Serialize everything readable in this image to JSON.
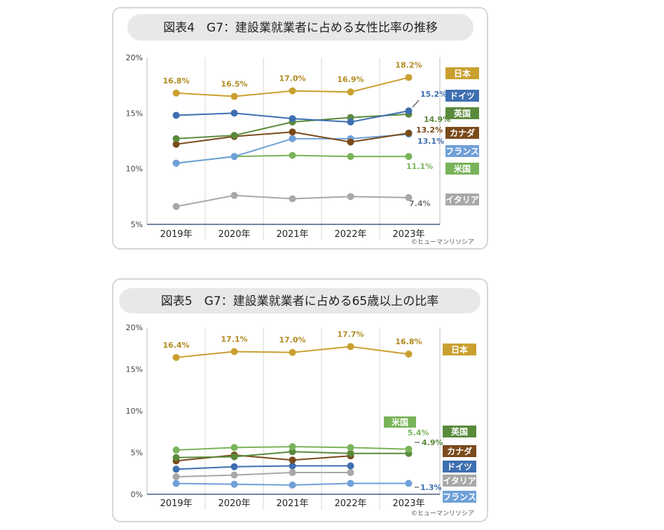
{
  "chart_data": [
    {
      "type": "line",
      "title": "図表4　G7：建設業就業者に占める女性比率の推移",
      "categories": [
        "2019年",
        "2020年",
        "2021年",
        "2022年",
        "2023年"
      ],
      "ylim": [
        5,
        20
      ],
      "yticks": [
        5,
        10,
        15,
        20
      ],
      "ytick_labels": [
        "5%",
        "10%",
        "15%",
        "20%"
      ],
      "credit": "©ヒューマンリソシア",
      "series": [
        {
          "name": "日本",
          "color": "#C9A030",
          "values": [
            16.8,
            16.5,
            17.0,
            16.9,
            18.2
          ],
          "value_labels": [
            "16.8%",
            "16.5%",
            "17.0%",
            "16.9%",
            "18.2%"
          ]
        },
        {
          "name": "ドイツ",
          "color": "#3E6FB0",
          "values": [
            14.8,
            15.0,
            14.5,
            14.2,
            15.2
          ],
          "value_labels": [
            "",
            "",
            "",
            "",
            "15.2%"
          ]
        },
        {
          "name": "英国",
          "color": "#5A8A3C",
          "values": [
            12.7,
            13.0,
            14.2,
            14.6,
            14.9
          ],
          "value_labels": [
            "",
            "",
            "",
            "",
            "14.9%"
          ]
        },
        {
          "name": "カナダ",
          "color": "#7A4A1A",
          "values": [
            12.2,
            12.9,
            13.3,
            12.4,
            13.2
          ],
          "value_labels": [
            "",
            "",
            "",
            "",
            "13.2%"
          ]
        },
        {
          "name": "フランス",
          "color": "#6FA0D8",
          "values": [
            10.5,
            11.1,
            12.7,
            12.7,
            13.1
          ],
          "value_labels": [
            "",
            "",
            "",
            "",
            "13.1%"
          ]
        },
        {
          "name": "米国",
          "color": "#79B35A",
          "values": [
            10.5,
            11.1,
            11.2,
            11.1,
            11.1
          ],
          "value_labels": [
            "",
            "",
            "",
            "",
            "11.1%"
          ]
        },
        {
          "name": "イタリア",
          "color": "#A8A8A8",
          "values": [
            6.6,
            7.6,
            7.3,
            7.5,
            7.4
          ],
          "value_labels": [
            "",
            "",
            "",
            "",
            "7.4%"
          ]
        }
      ]
    },
    {
      "type": "line",
      "title": "図表5　G7：建設業就業者に占める65歳以上の比率",
      "categories": [
        "2019年",
        "2020年",
        "2021年",
        "2022年",
        "2023年"
      ],
      "ylim": [
        0,
        20
      ],
      "yticks": [
        0,
        5,
        10,
        15,
        20
      ],
      "ytick_labels": [
        "0%",
        "5%",
        "10%",
        "15%",
        "20%"
      ],
      "credit": "©ヒューマンリソシア",
      "series": [
        {
          "name": "日本",
          "color": "#C9A030",
          "values": [
            16.4,
            17.1,
            17.0,
            17.7,
            16.8
          ],
          "value_labels": [
            "16.4%",
            "17.1%",
            "17.0%",
            "17.7%",
            "16.8%"
          ]
        },
        {
          "name": "米国",
          "color": "#79B35A",
          "values": [
            5.3,
            5.6,
            5.7,
            5.6,
            5.4
          ],
          "value_labels": [
            "",
            "",
            "",
            "",
            "5.4%"
          ]
        },
        {
          "name": "英国",
          "color": "#5A8A3C",
          "values": [
            4.4,
            4.5,
            5.1,
            4.9,
            4.9
          ],
          "value_labels": [
            "",
            "",
            "",
            "",
            "4.9%"
          ]
        },
        {
          "name": "カナダ",
          "color": "#7A4A1A",
          "values": [
            4.0,
            4.7,
            4.1,
            4.6,
            null
          ],
          "value_labels": [
            "",
            "",
            "",
            "",
            ""
          ]
        },
        {
          "name": "ドイツ",
          "color": "#3E6FB0",
          "values": [
            3.0,
            3.3,
            3.4,
            3.4,
            null
          ],
          "value_labels": [
            "",
            "",
            "",
            "",
            ""
          ]
        },
        {
          "name": "イタリア",
          "color": "#A8A8A8",
          "values": [
            2.1,
            2.3,
            2.6,
            2.6,
            null
          ],
          "value_labels": [
            "",
            "",
            "",
            "",
            ""
          ]
        },
        {
          "name": "フランス",
          "color": "#6FA0D8",
          "values": [
            1.3,
            1.2,
            1.1,
            1.3,
            1.3
          ],
          "value_labels": [
            "",
            "",
            "",
            "",
            "1.3%"
          ]
        }
      ]
    }
  ]
}
